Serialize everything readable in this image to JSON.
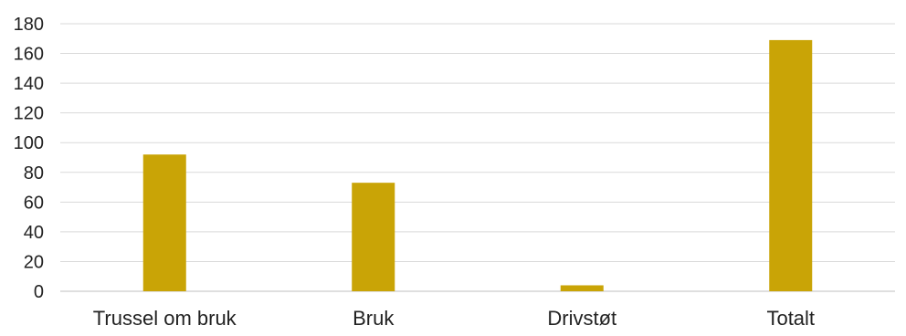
{
  "chart_data": {
    "type": "bar",
    "categories": [
      "Trussel om bruk",
      "Bruk",
      "Drivstøt",
      "Totalt"
    ],
    "values": [
      92,
      73,
      4,
      169
    ],
    "title": "",
    "xlabel": "",
    "ylabel": "",
    "ylim": [
      0,
      180
    ],
    "yticks": [
      "0",
      "20",
      "40",
      "60",
      "80",
      "100",
      "120",
      "140",
      "160",
      "180"
    ],
    "grid": true,
    "legend": "none",
    "bar_color": "#c9a406"
  }
}
